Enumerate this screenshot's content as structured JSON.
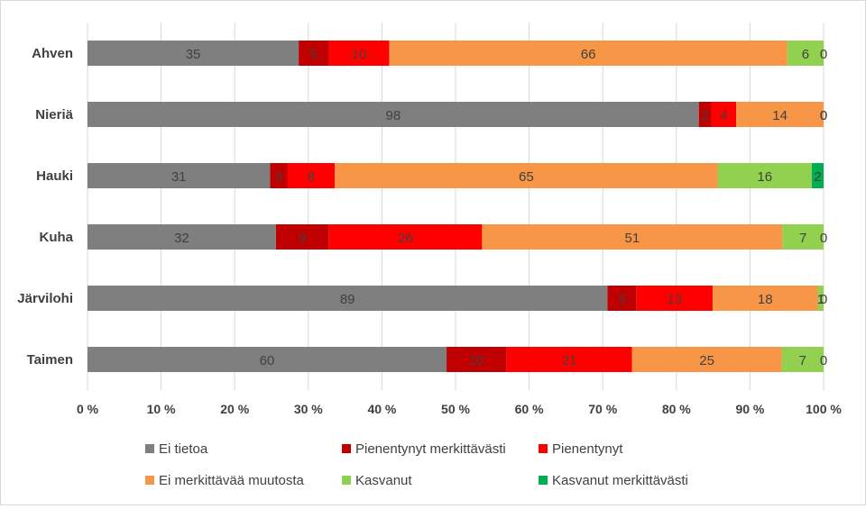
{
  "chart_data": {
    "type": "bar",
    "orientation": "horizontal",
    "stacked": "percent",
    "categories": [
      "Ahven",
      "Nieriä",
      "Hauki",
      "Kuha",
      "Järvilohi",
      "Taimen"
    ],
    "series": [
      {
        "name": "Ei tietoa",
        "color": "#7f7f7f",
        "values": [
          35,
          98,
          31,
          32,
          89,
          60
        ]
      },
      {
        "name": "Pienentynyt merkittävästi",
        "color": "#c00000",
        "values": [
          5,
          2,
          3,
          9,
          5,
          10
        ]
      },
      {
        "name": "Pienentynyt",
        "color": "#ff0000",
        "values": [
          10,
          4,
          8,
          26,
          13,
          21
        ]
      },
      {
        "name": "Ei merkittävää muutosta",
        "color": "#f79646",
        "values": [
          66,
          14,
          65,
          51,
          18,
          25
        ]
      },
      {
        "name": "Kasvanut",
        "color": "#92d050",
        "values": [
          6,
          0,
          16,
          7,
          1,
          7
        ]
      },
      {
        "name": "Kasvanut merkittävästi",
        "color": "#00b050",
        "values": [
          0,
          0,
          2,
          0,
          0,
          0
        ]
      }
    ],
    "x_ticks": [
      "0 %",
      "10 %",
      "20 %",
      "30 %",
      "40 %",
      "50 %",
      "60 %",
      "70 %",
      "80 %",
      "90 %",
      "100 %"
    ],
    "xlim": [
      0,
      100
    ],
    "grid": true,
    "legend_position": "bottom"
  }
}
